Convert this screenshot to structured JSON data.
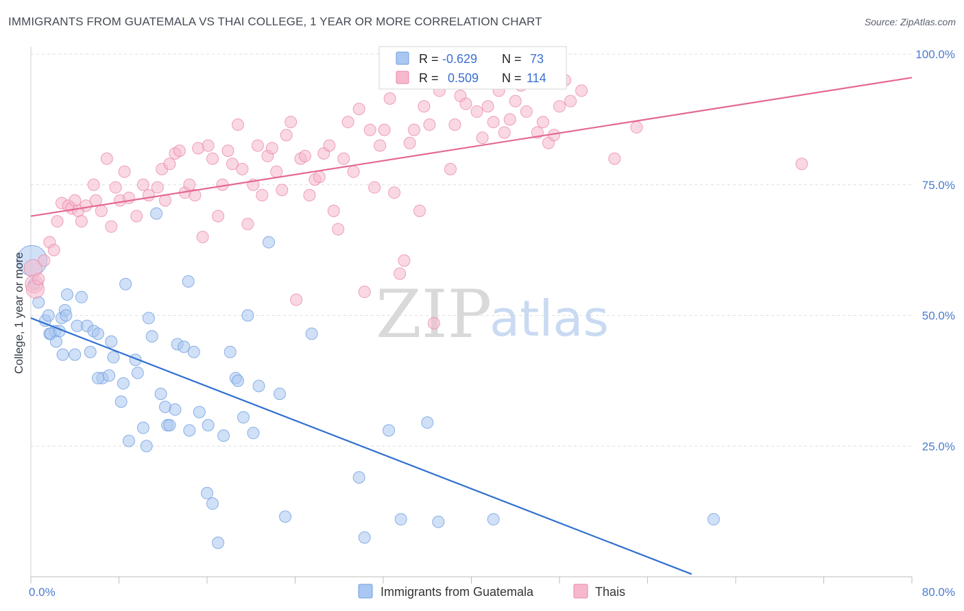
{
  "title": "IMMIGRANTS FROM GUATEMALA VS THAI COLLEGE, 1 YEAR OR MORE CORRELATION CHART",
  "source": "Source: ZipAtlas.com",
  "watermark": {
    "zip": "ZIP",
    "atlas": "atlas"
  },
  "legend": {
    "rows": [
      {
        "r_label": "R =",
        "r_value": "-0.629",
        "n_label": "N =",
        "n_value": "73",
        "color": "#a9c7f1",
        "stroke": "#6f9ee0"
      },
      {
        "r_label": "R =",
        "r_value": "0.509",
        "n_label": "N =",
        "n_value": "114",
        "color": "#f6b8cc",
        "stroke": "#ea89a8"
      }
    ]
  },
  "chart_data": {
    "type": "scatter",
    "xlabel": "",
    "ylabel": "College, 1 year or more",
    "xlim": [
      0,
      80
    ],
    "ylim": [
      0,
      100
    ],
    "x_tick_labels": [
      "0.0%",
      "80.0%"
    ],
    "y_tick_labels": [
      "25.0%",
      "50.0%",
      "75.0%",
      "100.0%"
    ],
    "y_ticks": [
      25,
      50,
      75,
      100
    ],
    "grid": true,
    "legend_position": "bottom-center",
    "series": [
      {
        "name": "Immigrants from Guatemala",
        "color": "#a9c7f1",
        "stroke": "#6f9ee0",
        "line_color": "#2f6fd0",
        "trend": {
          "x": [
            0,
            60
          ],
          "y": [
            49.5,
            0.5
          ]
        },
        "points": [
          [
            0.1,
            60.5
          ],
          [
            0.3,
            56
          ],
          [
            0.7,
            52.5
          ],
          [
            1.3,
            49
          ],
          [
            1.6,
            50
          ],
          [
            1.7,
            46.5
          ],
          [
            2.2,
            47
          ],
          [
            1.8,
            46.5
          ],
          [
            2.8,
            49.5
          ],
          [
            2.6,
            47
          ],
          [
            3.1,
            51
          ],
          [
            3.2,
            50
          ],
          [
            3.3,
            54
          ],
          [
            2.9,
            42.5
          ],
          [
            2.3,
            45
          ],
          [
            4.2,
            48
          ],
          [
            5.1,
            48
          ],
          [
            4.6,
            53.5
          ],
          [
            5.7,
            47
          ],
          [
            4.0,
            42.5
          ],
          [
            5.4,
            43
          ],
          [
            6.1,
            46.5
          ],
          [
            6.5,
            38
          ],
          [
            6.1,
            38
          ],
          [
            7.1,
            38.5
          ],
          [
            7.3,
            45
          ],
          [
            7.5,
            42
          ],
          [
            8.2,
            33.5
          ],
          [
            8.4,
            37
          ],
          [
            8.6,
            56
          ],
          [
            8.9,
            26
          ],
          [
            9.5,
            41.5
          ],
          [
            9.7,
            39
          ],
          [
            10.5,
            25
          ],
          [
            11.0,
            46
          ],
          [
            10.7,
            49.5
          ],
          [
            10.2,
            28.5
          ],
          [
            11.4,
            69.5
          ],
          [
            11.8,
            35
          ],
          [
            12.2,
            32.5
          ],
          [
            12.4,
            29
          ],
          [
            12.6,
            29
          ],
          [
            13.1,
            32
          ],
          [
            13.3,
            44.5
          ],
          [
            13.9,
            44
          ],
          [
            14.3,
            56.5
          ],
          [
            14.8,
            43
          ],
          [
            14.4,
            28
          ],
          [
            15.3,
            31.5
          ],
          [
            16.1,
            29
          ],
          [
            16.0,
            16
          ],
          [
            16.5,
            14
          ],
          [
            17.0,
            6.5
          ],
          [
            17.5,
            27
          ],
          [
            18.1,
            43
          ],
          [
            18.6,
            38
          ],
          [
            18.8,
            37.5
          ],
          [
            19.3,
            30.5
          ],
          [
            19.7,
            50
          ],
          [
            20.2,
            27.5
          ],
          [
            20.7,
            36.5
          ],
          [
            21.6,
            64
          ],
          [
            22.6,
            35
          ],
          [
            23.1,
            11.5
          ],
          [
            25.5,
            46.5
          ],
          [
            29.8,
            19
          ],
          [
            30.3,
            7.5
          ],
          [
            32.5,
            28
          ],
          [
            33.6,
            11
          ],
          [
            36.0,
            29.5
          ],
          [
            37.0,
            10.5
          ],
          [
            42.0,
            11
          ],
          [
            62.0,
            11
          ]
        ]
      },
      {
        "name": "Thais",
        "color": "#f6b8cc",
        "stroke": "#ea89a8",
        "line_color": "#e4688f",
        "trend": {
          "x": [
            0,
            80
          ],
          "y": [
            69,
            95.5
          ]
        },
        "points": [
          [
            0.2,
            59
          ],
          [
            0.3,
            56
          ],
          [
            0.4,
            55
          ],
          [
            0.7,
            57
          ],
          [
            1.2,
            60.5
          ],
          [
            1.7,
            64
          ],
          [
            2.1,
            62.5
          ],
          [
            2.4,
            68
          ],
          [
            2.8,
            71.5
          ],
          [
            3.4,
            71
          ],
          [
            3.7,
            70.5
          ],
          [
            4.0,
            72
          ],
          [
            4.3,
            70
          ],
          [
            4.6,
            68
          ],
          [
            5.0,
            71
          ],
          [
            5.7,
            75
          ],
          [
            5.9,
            72
          ],
          [
            6.4,
            70
          ],
          [
            6.9,
            80
          ],
          [
            7.3,
            67
          ],
          [
            7.7,
            74.5
          ],
          [
            8.1,
            72
          ],
          [
            8.5,
            77.5
          ],
          [
            8.9,
            72.5
          ],
          [
            9.6,
            69
          ],
          [
            10.2,
            75
          ],
          [
            10.7,
            73
          ],
          [
            11.5,
            74.5
          ],
          [
            11.9,
            78
          ],
          [
            12.2,
            72
          ],
          [
            12.6,
            79
          ],
          [
            13.1,
            81
          ],
          [
            13.5,
            81.5
          ],
          [
            14.0,
            73.5
          ],
          [
            14.4,
            75
          ],
          [
            14.9,
            73
          ],
          [
            15.2,
            82
          ],
          [
            15.6,
            65
          ],
          [
            16.1,
            82.5
          ],
          [
            16.5,
            80
          ],
          [
            17.0,
            69
          ],
          [
            17.4,
            75
          ],
          [
            17.9,
            81.5
          ],
          [
            18.3,
            79
          ],
          [
            18.8,
            86.5
          ],
          [
            19.2,
            78
          ],
          [
            19.7,
            67.5
          ],
          [
            20.2,
            75
          ],
          [
            20.6,
            82.5
          ],
          [
            21.0,
            73
          ],
          [
            21.5,
            80.5
          ],
          [
            21.9,
            82
          ],
          [
            22.3,
            77.5
          ],
          [
            22.8,
            74
          ],
          [
            23.2,
            84.5
          ],
          [
            23.6,
            87
          ],
          [
            24.1,
            53
          ],
          [
            24.5,
            80
          ],
          [
            24.9,
            80.5
          ],
          [
            25.3,
            73
          ],
          [
            25.8,
            76
          ],
          [
            26.2,
            76.5
          ],
          [
            26.6,
            81
          ],
          [
            27.1,
            82.5
          ],
          [
            27.5,
            70
          ],
          [
            27.9,
            66.5
          ],
          [
            28.4,
            80
          ],
          [
            28.8,
            87
          ],
          [
            29.3,
            77.5
          ],
          [
            29.8,
            89.5
          ],
          [
            30.3,
            54.5
          ],
          [
            30.8,
            85.5
          ],
          [
            31.2,
            74.5
          ],
          [
            31.7,
            82.5
          ],
          [
            32.1,
            85.5
          ],
          [
            32.6,
            91.5
          ],
          [
            33.0,
            73.5
          ],
          [
            33.5,
            58
          ],
          [
            33.9,
            60.5
          ],
          [
            34.4,
            83
          ],
          [
            34.8,
            85.5
          ],
          [
            35.3,
            70
          ],
          [
            35.7,
            90
          ],
          [
            36.2,
            86.5
          ],
          [
            36.6,
            48.5
          ],
          [
            37.1,
            93
          ],
          [
            37.6,
            95
          ],
          [
            38.1,
            78
          ],
          [
            38.5,
            86.5
          ],
          [
            39.0,
            92
          ],
          [
            39.5,
            90.5
          ],
          [
            40.0,
            97
          ],
          [
            40.5,
            89
          ],
          [
            41.0,
            84
          ],
          [
            41.5,
            90
          ],
          [
            42.0,
            87
          ],
          [
            42.5,
            93
          ],
          [
            43.0,
            85
          ],
          [
            43.5,
            87.5
          ],
          [
            44.0,
            91
          ],
          [
            44.5,
            94
          ],
          [
            45.0,
            89
          ],
          [
            45.5,
            96
          ],
          [
            46.0,
            85
          ],
          [
            46.5,
            87
          ],
          [
            47.0,
            83
          ],
          [
            47.5,
            84.5
          ],
          [
            48.0,
            90
          ],
          [
            48.5,
            95
          ],
          [
            49.0,
            91
          ],
          [
            50.0,
            93
          ],
          [
            53.0,
            80
          ],
          [
            55.0,
            86
          ],
          [
            70.0,
            79
          ]
        ]
      }
    ]
  }
}
